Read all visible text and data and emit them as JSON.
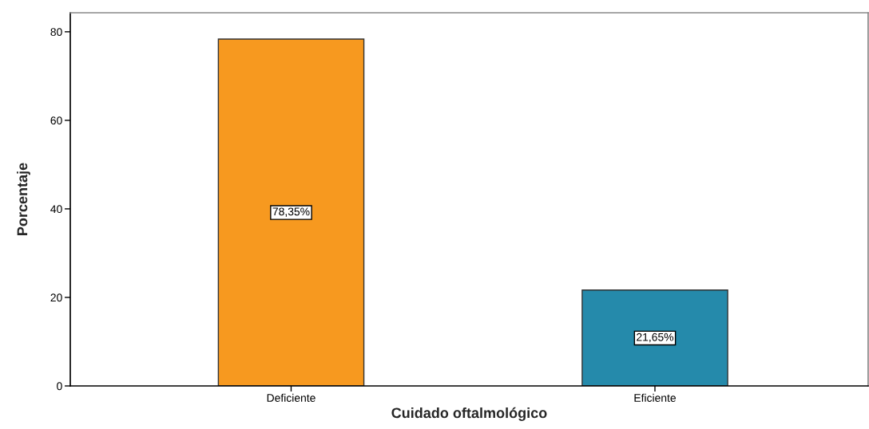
{
  "chart_data": {
    "type": "bar",
    "xlabel": "Cuidado oftalmológico",
    "ylabel": "Porcentaje",
    "categories": [
      "Deficiente",
      "Eficiente"
    ],
    "values": [
      78.35,
      21.65
    ],
    "colors": [
      "#f7991f",
      "#258aab"
    ],
    "value_labels": [
      "78,35%",
      "21,65%"
    ],
    "ylim": [
      0,
      84.3
    ],
    "yticks": [
      0,
      20,
      40,
      60,
      80
    ]
  }
}
